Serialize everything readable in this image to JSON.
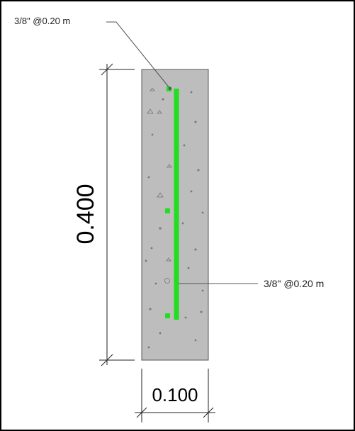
{
  "annotations": {
    "top_label": "3/8\" @0.20 m",
    "side_label": "3/8\" @0.20 m"
  },
  "dimensions": {
    "height": "0.400",
    "width": "0.100"
  },
  "colors": {
    "frame": "#000000",
    "concrete": "#bdbdbd",
    "rebar": "#22dd22",
    "leader": "#555555"
  }
}
